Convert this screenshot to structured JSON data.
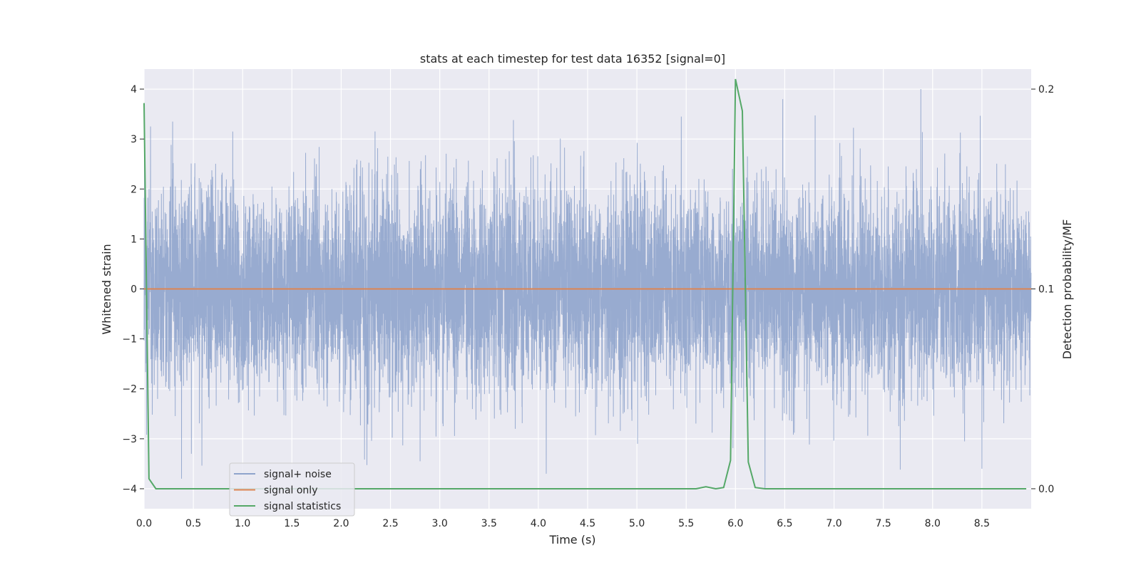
{
  "chart_data": {
    "type": "line",
    "title": "stats at each timestep for test data 16352 [signal=0]",
    "xlabel": "Time (s)",
    "ylabel": "Whitened strain",
    "y2label": "Detection probability/MF",
    "xlim": [
      0.0,
      9.0
    ],
    "ylim": [
      -4.4,
      4.4
    ],
    "y2lim": [
      -0.01,
      0.21
    ],
    "xticks": [
      "0.0",
      "0.5",
      "1.0",
      "1.5",
      "2.0",
      "2.5",
      "3.0",
      "3.5",
      "4.0",
      "4.5",
      "5.0",
      "5.5",
      "6.0",
      "6.5",
      "7.0",
      "7.5",
      "8.0",
      "8.5"
    ],
    "yticks": [
      "−4",
      "−3",
      "−2",
      "−1",
      "0",
      "1",
      "2",
      "3",
      "4"
    ],
    "y2ticks": [
      "0.0",
      "0.1",
      "0.2"
    ],
    "grid": true,
    "legend_position": "lower-left",
    "series": [
      {
        "name": "signal+ noise",
        "axis": "left",
        "color": "#8fa4cc",
        "kind": "noise",
        "samples": 8192,
        "std": 1.0,
        "range": [
          -4.0,
          4.0
        ],
        "peaks": [
          {
            "x": 0.29,
            "y": 3.35
          },
          {
            "x": 0.38,
            "y": -3.8
          },
          {
            "x": 0.48,
            "y": -3.3
          },
          {
            "x": 0.9,
            "y": 3.15
          },
          {
            "x": 2.8,
            "y": -3.45
          },
          {
            "x": 4.08,
            "y": -3.7
          },
          {
            "x": 5.45,
            "y": 3.45
          },
          {
            "x": 6.48,
            "y": 3.8
          },
          {
            "x": 6.3,
            "y": -4.0
          },
          {
            "x": 7.88,
            "y": 4.0
          },
          {
            "x": 8.5,
            "y": -3.6
          }
        ]
      },
      {
        "name": "signal only",
        "axis": "left",
        "color": "#dd8452",
        "x": [
          0.0,
          9.0
        ],
        "y": [
          0.0,
          0.0
        ]
      },
      {
        "name": "signal statistics",
        "axis": "right",
        "color": "#55a868",
        "x": [
          0.0,
          0.05,
          0.12,
          1.0,
          2.0,
          3.0,
          4.0,
          5.0,
          5.6,
          5.7,
          5.8,
          5.88,
          5.95,
          6.0,
          6.07,
          6.13,
          6.2,
          6.3,
          7.0,
          8.0,
          8.95
        ],
        "y": [
          0.193,
          0.005,
          0.0,
          0.0,
          0.0,
          0.0,
          0.0,
          0.0,
          0.0,
          0.001,
          0.0,
          0.0006,
          0.0142,
          0.205,
          0.189,
          0.0134,
          0.0006,
          0.0,
          0.0,
          0.0,
          0.0
        ]
      }
    ]
  }
}
